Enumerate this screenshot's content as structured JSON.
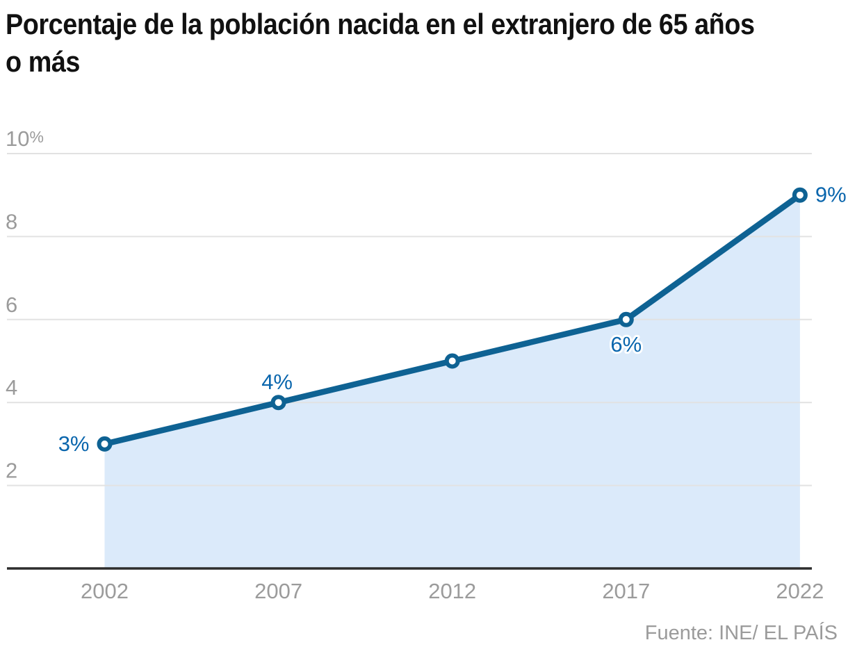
{
  "title": "Porcentaje de la población nacida en el extranjero de 65 años\no más",
  "source": "Fuente: INE/ EL PAÍS",
  "colors": {
    "line": "#0e6293",
    "area_fill": "#dbeafa",
    "point_label": "#0a66ad",
    "point_label_halo": "#ffffff",
    "grid_line": "#e2e2e2",
    "axis_line": "#2d2d2d",
    "tick_label": "#9b9b9b",
    "title_text": "#111111",
    "marker_fill": "#ffffff"
  },
  "chart_data": {
    "type": "area",
    "title": "Porcentaje de la población nacida en el extranjero de 65 años o más",
    "x": [
      "2002",
      "2007",
      "2012",
      "2017",
      "2022"
    ],
    "values": [
      3,
      4,
      5,
      6,
      9
    ],
    "unit": "%",
    "point_labels": [
      "3%",
      "4%",
      "",
      "6%",
      "9%"
    ],
    "point_label_placement": [
      "left",
      "above",
      "none",
      "below",
      "right"
    ],
    "yticks": [
      {
        "value": 2,
        "label": "2"
      },
      {
        "value": 4,
        "label": "4"
      },
      {
        "value": 6,
        "label": "6"
      },
      {
        "value": 8,
        "label": "8"
      },
      {
        "value": 10,
        "label": "10%"
      }
    ],
    "ylim": [
      0,
      10.5
    ],
    "grid": true,
    "legend": false,
    "xlabel": "",
    "ylabel": "",
    "source": "Fuente: INE/ EL PAÍS"
  }
}
